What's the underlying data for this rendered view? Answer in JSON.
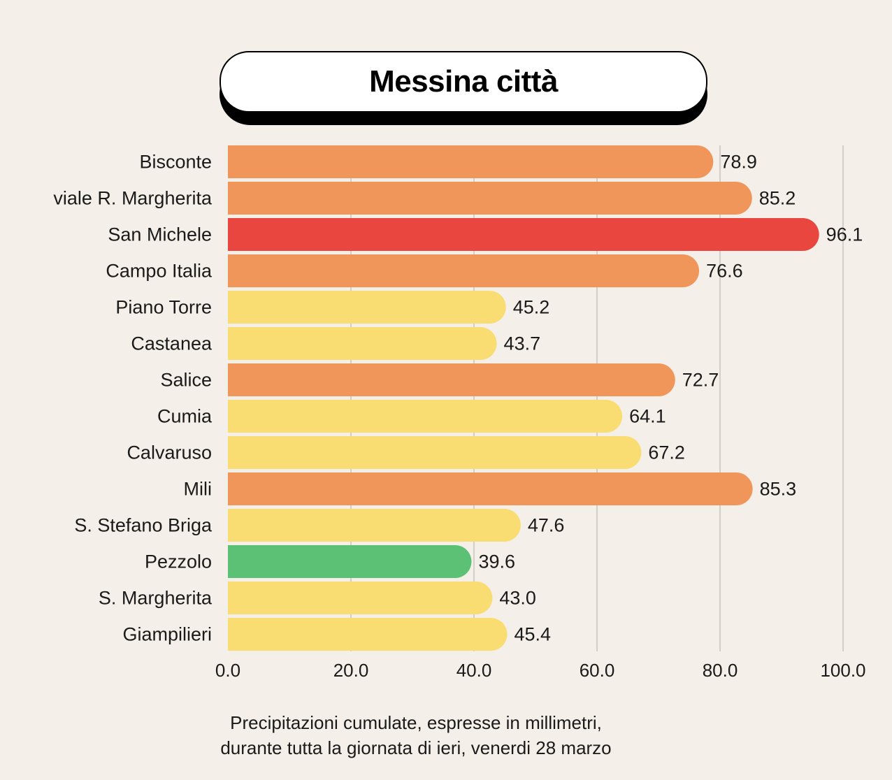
{
  "chart_data": {
    "type": "bar",
    "orientation": "horizontal",
    "title": "Messina città",
    "categories": [
      "Bisconte",
      "viale R. Margherita",
      "San Michele",
      "Campo Italia",
      "Piano Torre",
      "Castanea",
      "Salice",
      "Cumia",
      "Calvaruso",
      "Mili",
      "S. Stefano Briga",
      "Pezzolo",
      "S. Margherita",
      "Giampilieri"
    ],
    "values": [
      78.9,
      85.2,
      96.1,
      76.6,
      45.2,
      43.7,
      72.7,
      64.1,
      67.2,
      85.3,
      47.6,
      39.6,
      43.0,
      45.4
    ],
    "value_labels": [
      "78.9",
      "85.2",
      "96.1",
      "76.6",
      "45.2",
      "43.7",
      "72.7",
      "64.1",
      "67.2",
      "85.3",
      "47.6",
      "39.6",
      "43.0",
      "45.4"
    ],
    "bar_colors": [
      "#f0965a",
      "#f0965a",
      "#ea4640",
      "#f0965a",
      "#f9dd72",
      "#f9dd72",
      "#f0965a",
      "#f9dd72",
      "#f9dd72",
      "#f0965a",
      "#f9dd72",
      "#5cc075",
      "#f9dd72",
      "#f9dd72"
    ],
    "xlim": [
      0,
      100
    ],
    "xticks": [
      0,
      20,
      40,
      60,
      80,
      100
    ],
    "xtick_labels": [
      "0.0",
      "20.0",
      "40.0",
      "60.0",
      "80.0",
      "100.0"
    ],
    "grid": true,
    "xlabel": "",
    "ylabel": ""
  },
  "caption": {
    "line1": "Precipitazioni cumulate, espresse in millimetri,",
    "line2": "durante tutta la giornata di ieri, venerdi 28 marzo"
  },
  "colors": {
    "background": "#f4efe8",
    "gridline": "#c8c4be"
  }
}
